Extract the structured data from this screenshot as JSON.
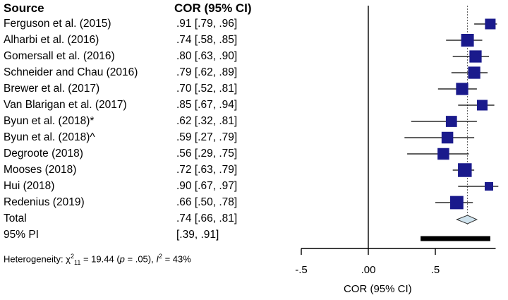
{
  "headers": {
    "source": "Source",
    "estimate": "COR (95% CI)"
  },
  "rows": [
    {
      "label": "Ferguson et al. (2015)",
      "ci_text": ".91 [.79, .96]"
    },
    {
      "label": "Alharbi et al. (2016)",
      "ci_text": ".74 [.58, .85]"
    },
    {
      "label": "Gomersall et al. (2016)",
      "ci_text": ".80 [.63, .90]"
    },
    {
      "label": "Schneider and Chau (2016)",
      "ci_text": ".79 [.62, .89]"
    },
    {
      "label": "Brewer et al. (2017)",
      "ci_text": ".70 [.52, .81]"
    },
    {
      "label": "Van Blarigan et al. (2017)",
      "ci_text": ".85 [.67, .94]"
    },
    {
      "label": "Byun et al. (2018)*",
      "ci_text": ".62 [.32, .81]"
    },
    {
      "label": "Byun et al. (2018)^",
      "ci_text": ".59 [.27, .79]"
    },
    {
      "label": "Degroote (2018)",
      "ci_text": ".56 [.29, .75]"
    },
    {
      "label": "Mooses (2018)",
      "ci_text": ".72 [.63, .79]"
    },
    {
      "label": "Hui (2018)",
      "ci_text": ".90 [.67, .97]"
    },
    {
      "label": "Redenius (2019)",
      "ci_text": ".66 [.50, .78]"
    },
    {
      "label": "Total",
      "ci_text": ".74 [.66, .81]"
    },
    {
      "label": "95% PI",
      "ci_text": "[.39, .91]"
    }
  ],
  "heterogeneity": {
    "prefix": "Heterogeneity: χ",
    "chi_sup": "2",
    "chi_sub": "11",
    "mid": " = 19.44 (",
    "p_symbol": "p",
    "p_rest": " = .05), ",
    "i_symbol": "I",
    "i_sup": "2",
    "i_rest": " = 43%"
  },
  "chart_data": {
    "type": "forest",
    "title": "",
    "xlabel": "COR (95% CI)",
    "ylabel": "",
    "xlim": [
      -0.5,
      0.95
    ],
    "xticks": [
      -0.5,
      0,
      0.5
    ],
    "xtick_labels": [
      "-.5",
      ".00",
      ".5"
    ],
    "null_line": 0,
    "reference_line": 0.74,
    "studies": [
      {
        "name": "Ferguson et al. (2015)",
        "estimate": 0.91,
        "lower": 0.79,
        "upper": 0.96,
        "weight": 1.0
      },
      {
        "name": "Alharbi et al. (2016)",
        "estimate": 0.74,
        "lower": 0.58,
        "upper": 0.85,
        "weight": 1.2
      },
      {
        "name": "Gomersall et al. (2016)",
        "estimate": 0.8,
        "lower": 0.63,
        "upper": 0.9,
        "weight": 1.15
      },
      {
        "name": "Schneider and Chau (2016)",
        "estimate": 0.79,
        "lower": 0.62,
        "upper": 0.89,
        "weight": 1.15
      },
      {
        "name": "Brewer et al. (2017)",
        "estimate": 0.7,
        "lower": 0.52,
        "upper": 0.81,
        "weight": 1.15
      },
      {
        "name": "Van Blarigan et al. (2017)",
        "estimate": 0.85,
        "lower": 0.67,
        "upper": 0.94,
        "weight": 1.0
      },
      {
        "name": "Byun et al. (2018)*",
        "estimate": 0.62,
        "lower": 0.32,
        "upper": 0.81,
        "weight": 1.05
      },
      {
        "name": "Byun et al. (2018)^",
        "estimate": 0.59,
        "lower": 0.27,
        "upper": 0.79,
        "weight": 1.1
      },
      {
        "name": "Degroote (2018)",
        "estimate": 0.56,
        "lower": 0.29,
        "upper": 0.75,
        "weight": 1.1
      },
      {
        "name": "Mooses (2018)",
        "estimate": 0.72,
        "lower": 0.63,
        "upper": 0.79,
        "weight": 1.3
      },
      {
        "name": "Hui (2018)",
        "estimate": 0.9,
        "lower": 0.67,
        "upper": 0.97,
        "weight": 0.8
      },
      {
        "name": "Redenius (2019)",
        "estimate": 0.66,
        "lower": 0.5,
        "upper": 0.78,
        "weight": 1.25
      }
    ],
    "total": {
      "estimate": 0.74,
      "lower": 0.66,
      "upper": 0.81
    },
    "prediction_interval": {
      "lower": 0.39,
      "upper": 0.91
    },
    "colors": {
      "marker": "#1a1a8c",
      "diamond": "#cfe3ee",
      "line": "#000000"
    }
  }
}
